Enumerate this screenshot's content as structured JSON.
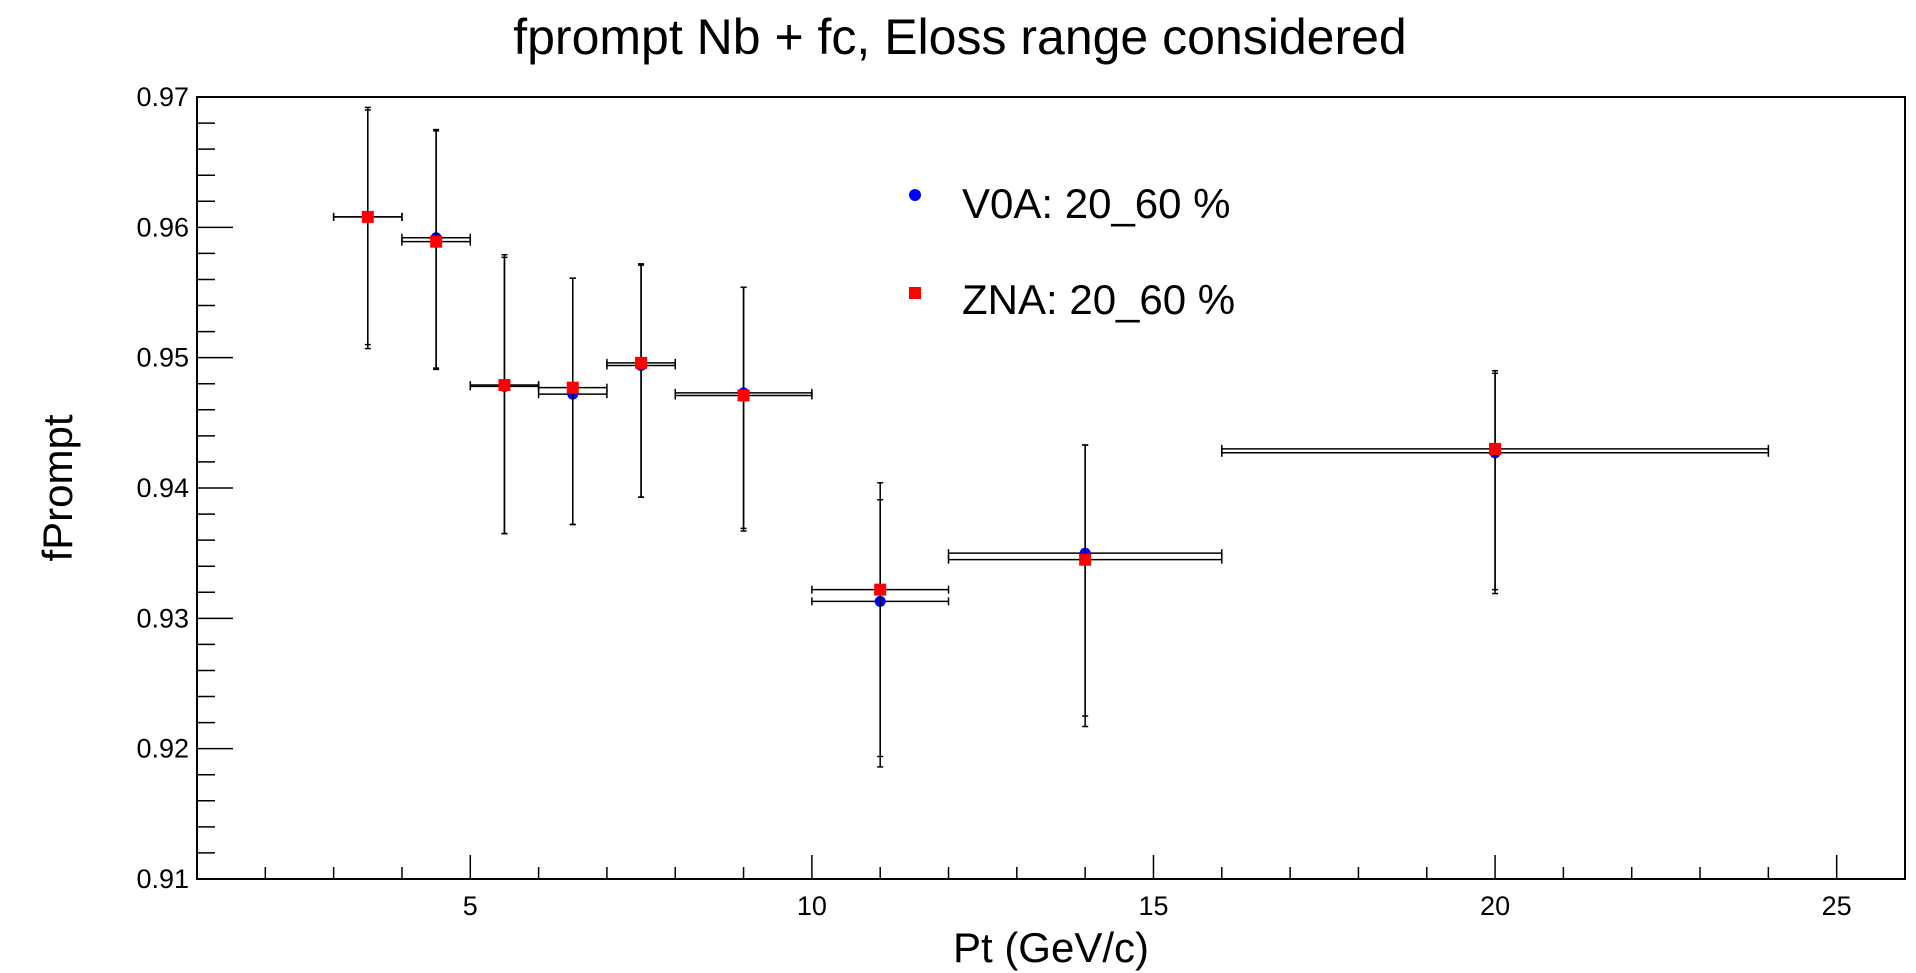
{
  "chart_data": {
    "type": "scatter",
    "title": "fprompt Nb + fc, Eloss range considered",
    "xlabel": "Pt (GeV/c)",
    "ylabel": "fPrompt",
    "xlim": [
      1,
      26
    ],
    "ylim": [
      0.91,
      0.97
    ],
    "x_ticks": [
      5,
      10,
      15,
      20,
      25
    ],
    "x_tick_labels": [
      "5",
      "10",
      "15",
      "20",
      "25"
    ],
    "y_ticks": [
      0.91,
      0.92,
      0.93,
      0.94,
      0.95,
      0.96,
      0.97
    ],
    "y_tick_labels": [
      "0.91",
      "0.92",
      "0.93",
      "0.94",
      "0.95",
      "0.96",
      "0.97"
    ],
    "grid": false,
    "legend_position": "top-center",
    "series": [
      {
        "name": "V0A: 20_60 %",
        "color": "#0000ff",
        "marker": "circle",
        "points": [
          {
            "x": 3.5,
            "xerr": 0.5,
            "y": 0.9608,
            "yerr_lo": 0.0101,
            "yerr_hi": 0.0084
          },
          {
            "x": 4.5,
            "xerr": 0.5,
            "y": 0.9592,
            "yerr_lo": 0.0101,
            "yerr_hi": 0.0083
          },
          {
            "x": 5.5,
            "xerr": 0.5,
            "y": 0.9478,
            "yerr_lo": 0.0113,
            "yerr_hi": 0.0101
          },
          {
            "x": 6.5,
            "xerr": 0.5,
            "y": 0.9472,
            "yerr_lo": 0.01,
            "yerr_hi": 0.0089
          },
          {
            "x": 7.5,
            "xerr": 0.5,
            "y": 0.9494,
            "yerr_lo": 0.0101,
            "yerr_hi": 0.0078
          },
          {
            "x": 9.0,
            "xerr": 1.0,
            "y": 0.9473,
            "yerr_lo": 0.0104,
            "yerr_hi": 0.0081
          },
          {
            "x": 11.0,
            "xerr": 1.0,
            "y": 0.9313,
            "yerr_lo": 0.0127,
            "yerr_hi": 0.0078
          },
          {
            "x": 14.0,
            "xerr": 2.0,
            "y": 0.935,
            "yerr_lo": 0.0133,
            "yerr_hi": 0.0083
          },
          {
            "x": 20.0,
            "xerr": 4.0,
            "y": 0.9427,
            "yerr_lo": 0.0108,
            "yerr_hi": 0.0063
          }
        ]
      },
      {
        "name": "ZNA: 20_60 %",
        "color": "#ff0000",
        "marker": "square",
        "points": [
          {
            "x": 3.5,
            "xerr": 0.5,
            "y": 0.9608,
            "yerr_lo": 0.0098,
            "yerr_hi": 0.0082
          },
          {
            "x": 4.5,
            "xerr": 0.5,
            "y": 0.9589,
            "yerr_lo": 0.0097,
            "yerr_hi": 0.0085
          },
          {
            "x": 5.5,
            "xerr": 0.5,
            "y": 0.9479,
            "yerr_lo": 0.0114,
            "yerr_hi": 0.0098
          },
          {
            "x": 6.5,
            "xerr": 0.5,
            "y": 0.9477,
            "yerr_lo": 0.0105,
            "yerr_hi": 0.0084
          },
          {
            "x": 7.5,
            "xerr": 0.5,
            "y": 0.9496,
            "yerr_lo": 0.0103,
            "yerr_hi": 0.0075
          },
          {
            "x": 9.0,
            "xerr": 1.0,
            "y": 0.9471,
            "yerr_lo": 0.0104,
            "yerr_hi": 0.0083
          },
          {
            "x": 11.0,
            "xerr": 1.0,
            "y": 0.9322,
            "yerr_lo": 0.0128,
            "yerr_hi": 0.0082
          },
          {
            "x": 14.0,
            "xerr": 2.0,
            "y": 0.9345,
            "yerr_lo": 0.012,
            "yerr_hi": 0.0088
          },
          {
            "x": 20.0,
            "xerr": 4.0,
            "y": 0.943,
            "yerr_lo": 0.0108,
            "yerr_hi": 0.0058
          }
        ]
      }
    ]
  }
}
